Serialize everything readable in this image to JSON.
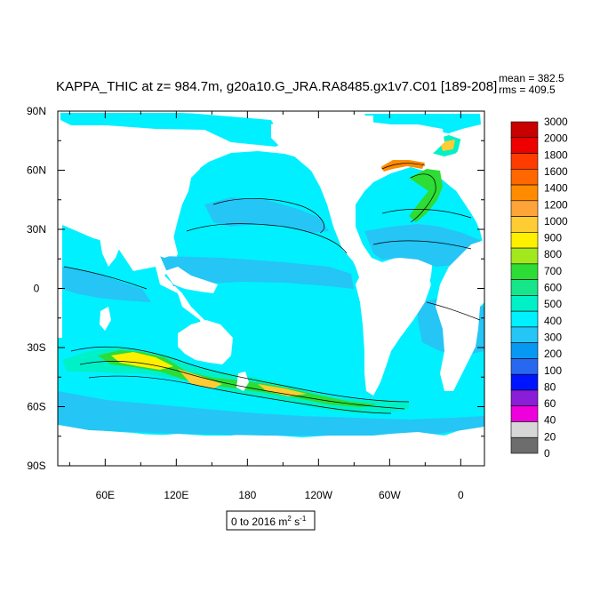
{
  "title": "KAPPA_THIC at z= 984.7m, g20a10.G_JRA.RA8485.gx1v7.C01 [189-208]",
  "stats": {
    "mean": "mean = 382.5",
    "rms": "rms = 409.5"
  },
  "range_box": {
    "text": "0 to 2016 m",
    "sup1": "2",
    "mid": " s",
    "sup2": "-1"
  },
  "chart_data": {
    "type": "heatmap",
    "title": "KAPPA_THIC at z= 984.7m, g20a10.G_JRA.RA8485.gx1v7.C01 [189-208]",
    "xlabel": "",
    "ylabel": "",
    "x_ticks": [
      "60E",
      "120E",
      "180",
      "120W",
      "60W",
      "0"
    ],
    "y_ticks": [
      "90N",
      "60N",
      "30N",
      "0",
      "30S",
      "60S",
      "90S"
    ],
    "xlim": [
      20,
      380
    ],
    "ylim": [
      -90,
      90
    ],
    "grid": false,
    "land_color": "#ffffff",
    "colorbar": {
      "placement": "right",
      "labels": [
        "3000",
        "2000",
        "1800",
        "1600",
        "1400",
        "1200",
        "1000",
        "900",
        "800",
        "700",
        "600",
        "500",
        "400",
        "300",
        "200",
        "100",
        "80",
        "60",
        "40",
        "20",
        "0"
      ],
      "colors": [
        "#c80000",
        "#ee0000",
        "#ff3b00",
        "#ff6800",
        "#ff8c00",
        "#ffa438",
        "#ffcc33",
        "#fff000",
        "#a2e81d",
        "#2ddc34",
        "#16e58a",
        "#00f0c8",
        "#00f0ff",
        "#25c5f5",
        "#0799f2",
        "#2868f0",
        "#0015ff",
        "#8a1dd7",
        "#ee00dd",
        "#d7d7d7",
        "#6d6d6d"
      ]
    },
    "mean": 382.5,
    "rms": 409.5,
    "range": [
      0,
      2016
    ],
    "units": "m^2 s^-1"
  }
}
